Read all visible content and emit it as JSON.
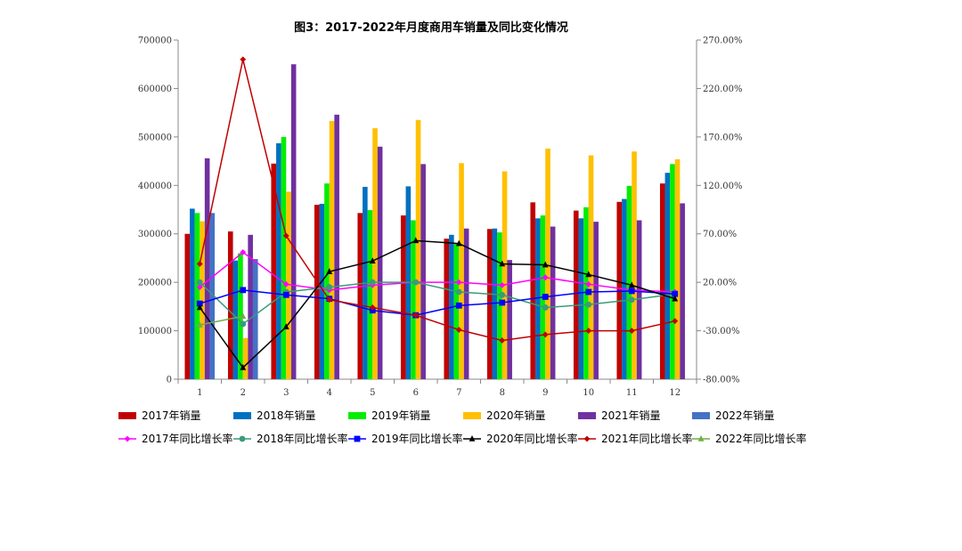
{
  "chart_data": {
    "type": "bar",
    "title": "图3：2017-2022年月度商用车销量及同比变化情况",
    "categories": [
      "1",
      "2",
      "3",
      "4",
      "5",
      "6",
      "7",
      "8",
      "9",
      "10",
      "11",
      "12"
    ],
    "y_left": {
      "min": 0,
      "max": 700000,
      "step": 100000,
      "ticks": [
        "0",
        "100000",
        "200000",
        "300000",
        "400000",
        "500000",
        "600000",
        "700000"
      ]
    },
    "y_right": {
      "min": -80,
      "max": 270,
      "step": 50,
      "ticks": [
        "-80.00%",
        "-30.00%",
        "20.00%",
        "70.00%",
        "120.00%",
        "170.00%",
        "220.00%",
        "270.00%"
      ]
    },
    "bar_series": [
      {
        "name": "2017年销量",
        "color": "#C00000",
        "values": [
          300000,
          305000,
          445000,
          360000,
          343000,
          338000,
          290000,
          310000,
          365000,
          348000,
          366000,
          404000
        ]
      },
      {
        "name": "2018年销量",
        "color": "#0070C0",
        "values": [
          352000,
          245000,
          487000,
          362000,
          397000,
          398000,
          298000,
          311000,
          332000,
          332000,
          372000,
          426000
        ]
      },
      {
        "name": "2019年销量",
        "color": "#00EE00",
        "values": [
          343000,
          260000,
          500000,
          404000,
          349000,
          328000,
          280000,
          303000,
          338000,
          355000,
          399000,
          444000
        ]
      },
      {
        "name": "2020年销量",
        "color": "#FFC000",
        "values": [
          326000,
          85000,
          387000,
          533000,
          518000,
          535000,
          446000,
          429000,
          476000,
          462000,
          470000,
          454000
        ]
      },
      {
        "name": "2021年销量",
        "color": "#7030A0",
        "values": [
          456000,
          298000,
          650000,
          546000,
          480000,
          444000,
          311000,
          246000,
          315000,
          325000,
          328000,
          363000
        ]
      },
      {
        "name": "2022年销量",
        "color": "#4472C4",
        "values": [
          343000,
          248000,
          null,
          null,
          null,
          null,
          null,
          null,
          null,
          null,
          null,
          null
        ]
      }
    ],
    "line_series": [
      {
        "name": "2017年同比增长率",
        "color": "#FF00FF",
        "marker": "diamond",
        "values": [
          15,
          51,
          18,
          12,
          17,
          20,
          20,
          17,
          25,
          18,
          12,
          10
        ]
      },
      {
        "name": "2018年同比增长率",
        "color": "#3A9B7A",
        "marker": "circle",
        "values": [
          20,
          -23,
          10,
          15,
          20,
          20,
          10,
          7,
          -6,
          -3,
          2,
          8
        ]
      },
      {
        "name": "2019年同比增长率",
        "color": "#0000FF",
        "marker": "square",
        "values": [
          -2,
          12,
          7,
          3,
          -9,
          -14,
          -4,
          -1,
          5,
          10,
          11,
          8
        ]
      },
      {
        "name": "2020年同比增长率",
        "color": "#000000",
        "marker": "triangle",
        "values": [
          -6,
          -68,
          -26,
          31,
          42,
          63,
          60,
          39,
          38,
          28,
          17,
          3
        ]
      },
      {
        "name": "2021年同比增长率",
        "color": "#C00000",
        "marker": "diamond",
        "values": [
          39,
          250,
          68,
          2,
          -6,
          -14,
          -29,
          -40,
          -34,
          -30,
          -30,
          -20
        ]
      },
      {
        "name": "2022年同比增长率",
        "color": "#70AD47",
        "marker": "triangle",
        "values": [
          -24,
          -15,
          null,
          null,
          null,
          null,
          null,
          null,
          null,
          null,
          null,
          null
        ]
      }
    ]
  }
}
